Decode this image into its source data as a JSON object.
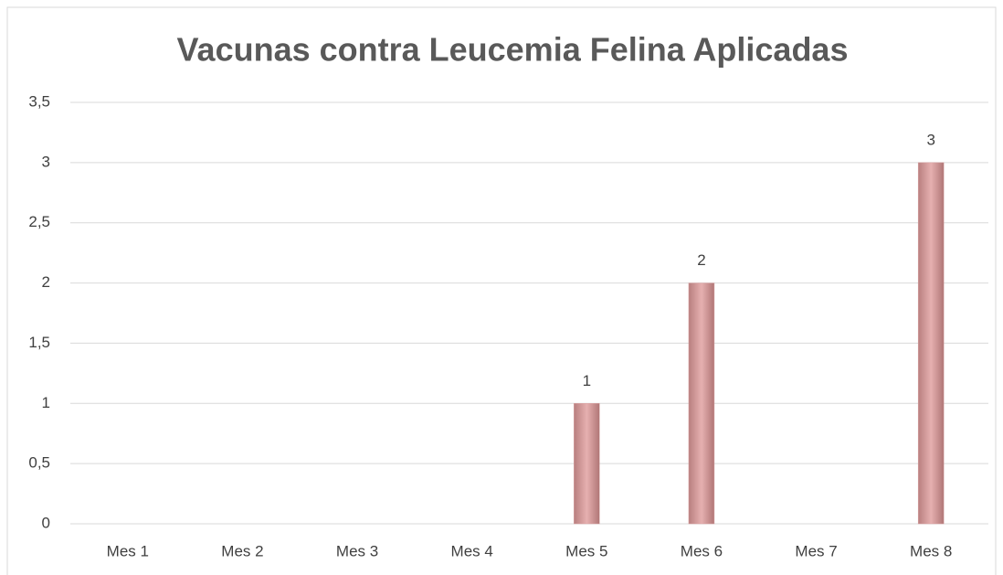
{
  "chart_data": {
    "type": "bar",
    "title": "Vacunas contra Leucemia Felina Aplicadas",
    "categories": [
      "Mes 1",
      "Mes 2",
      "Mes 3",
      "Mes 4",
      "Mes 5",
      "Mes 6",
      "Mes 7",
      "Mes 8"
    ],
    "values": [
      0,
      0,
      0,
      0,
      1,
      2,
      0,
      3
    ],
    "value_labels": [
      null,
      null,
      null,
      null,
      "1",
      "2",
      null,
      "3"
    ],
    "color": "#d9a3a3",
    "ylim": [
      0,
      3.5
    ],
    "yticks": [
      0,
      {
        "value": 0.5,
        "label": "0,5"
      },
      1,
      {
        "value": 1.5,
        "label": "1,5"
      },
      2,
      {
        "value": 2.5,
        "label": "2,5"
      },
      3,
      {
        "value": 3.5,
        "label": "3,5"
      }
    ],
    "grid": true
  }
}
